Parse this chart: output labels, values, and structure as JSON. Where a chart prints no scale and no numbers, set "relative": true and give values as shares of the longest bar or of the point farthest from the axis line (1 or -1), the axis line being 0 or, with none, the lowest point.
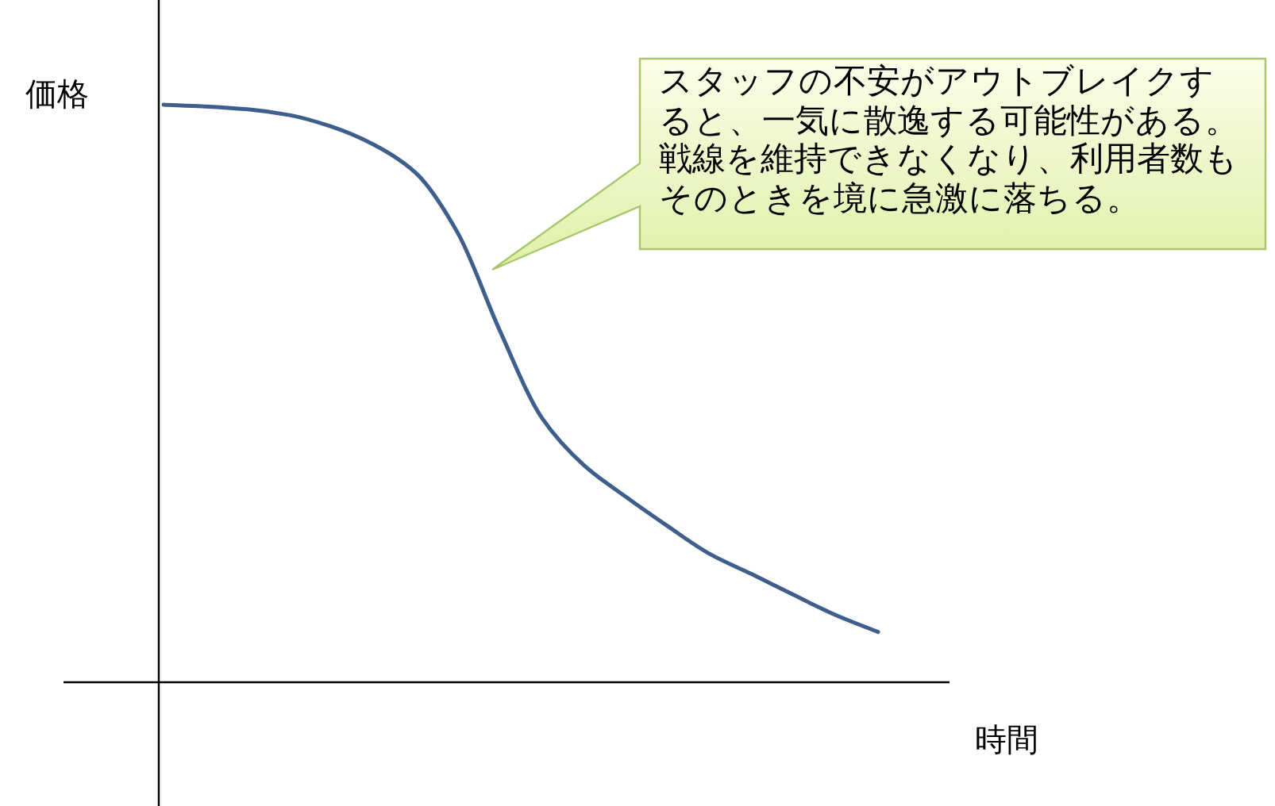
{
  "chart_data": {
    "type": "line",
    "relative": true,
    "xlabel": "時間",
    "ylabel": "価格",
    "categories": [
      null,
      null,
      null,
      null,
      null,
      null,
      null,
      null,
      null,
      null,
      null,
      null,
      null,
      null,
      null,
      null,
      null,
      null
    ],
    "series": [
      {
        "color": "#3e5f8c",
        "values": [
          1.0,
          0.997,
          0.992,
          0.982,
          0.962,
          0.931,
          0.882,
          0.778,
          0.609,
          0.458,
          0.376,
          0.321,
          0.27,
          0.222,
          0.187,
          0.151,
          0.116,
          0.087
        ]
      }
    ],
    "annotations": [
      "スタッフの不安がアウトブレイクすると、一気に散逸する可能性がある。戦線を維持できなくなり、利用者数もそのときを境に急激に落ちる。"
    ],
    "marker": "none",
    "line_style": "solid"
  }
}
